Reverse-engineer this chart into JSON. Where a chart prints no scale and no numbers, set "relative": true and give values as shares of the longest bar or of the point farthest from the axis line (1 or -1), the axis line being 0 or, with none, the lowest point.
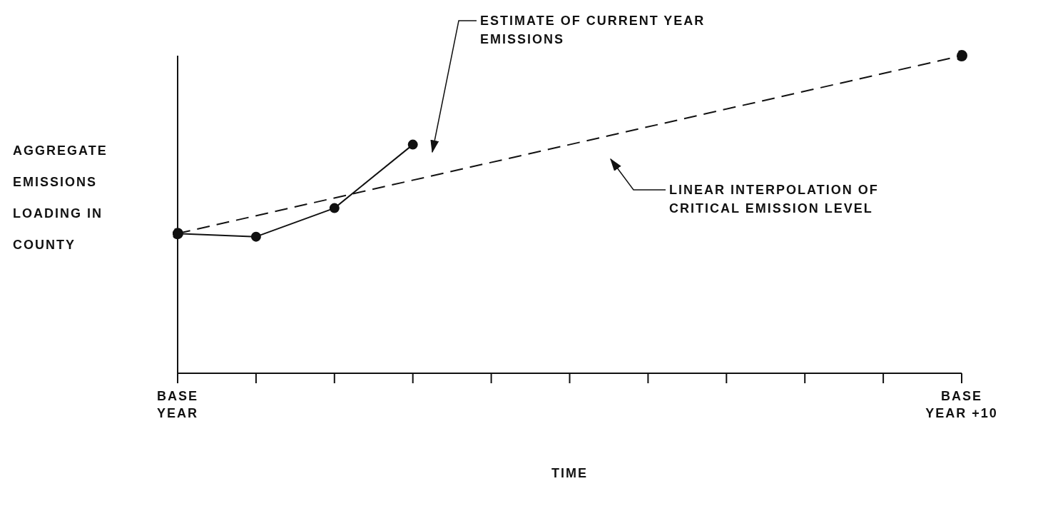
{
  "chart_data": {
    "type": "line",
    "relative": true,
    "xlabel": "TIME",
    "ylabel": "AGGREGATE EMISSIONS LOADING IN COUNTY",
    "categories": [
      "BASE YEAR",
      null,
      null,
      null,
      null,
      null,
      null,
      null,
      null,
      null,
      "BASE YEAR +10"
    ],
    "series": [
      {
        "color": "#111111",
        "values": [
          0.44,
          0.43,
          0.52,
          0.72,
          null,
          null,
          null,
          null,
          null,
          null,
          null
        ],
        "marker": "circle",
        "line_style": "solid"
      },
      {
        "color": "#111111",
        "values": [
          0.44,
          null,
          null,
          null,
          null,
          null,
          null,
          null,
          null,
          null,
          1
        ],
        "marker": "circle",
        "line_style": "dashed"
      }
    ],
    "annotations": [
      "ESTIMATE OF CURRENT YEAR EMISSIONS",
      "LINEAR INTERPOLATION OF CRITICAL EMISSION LEVEL"
    ]
  }
}
